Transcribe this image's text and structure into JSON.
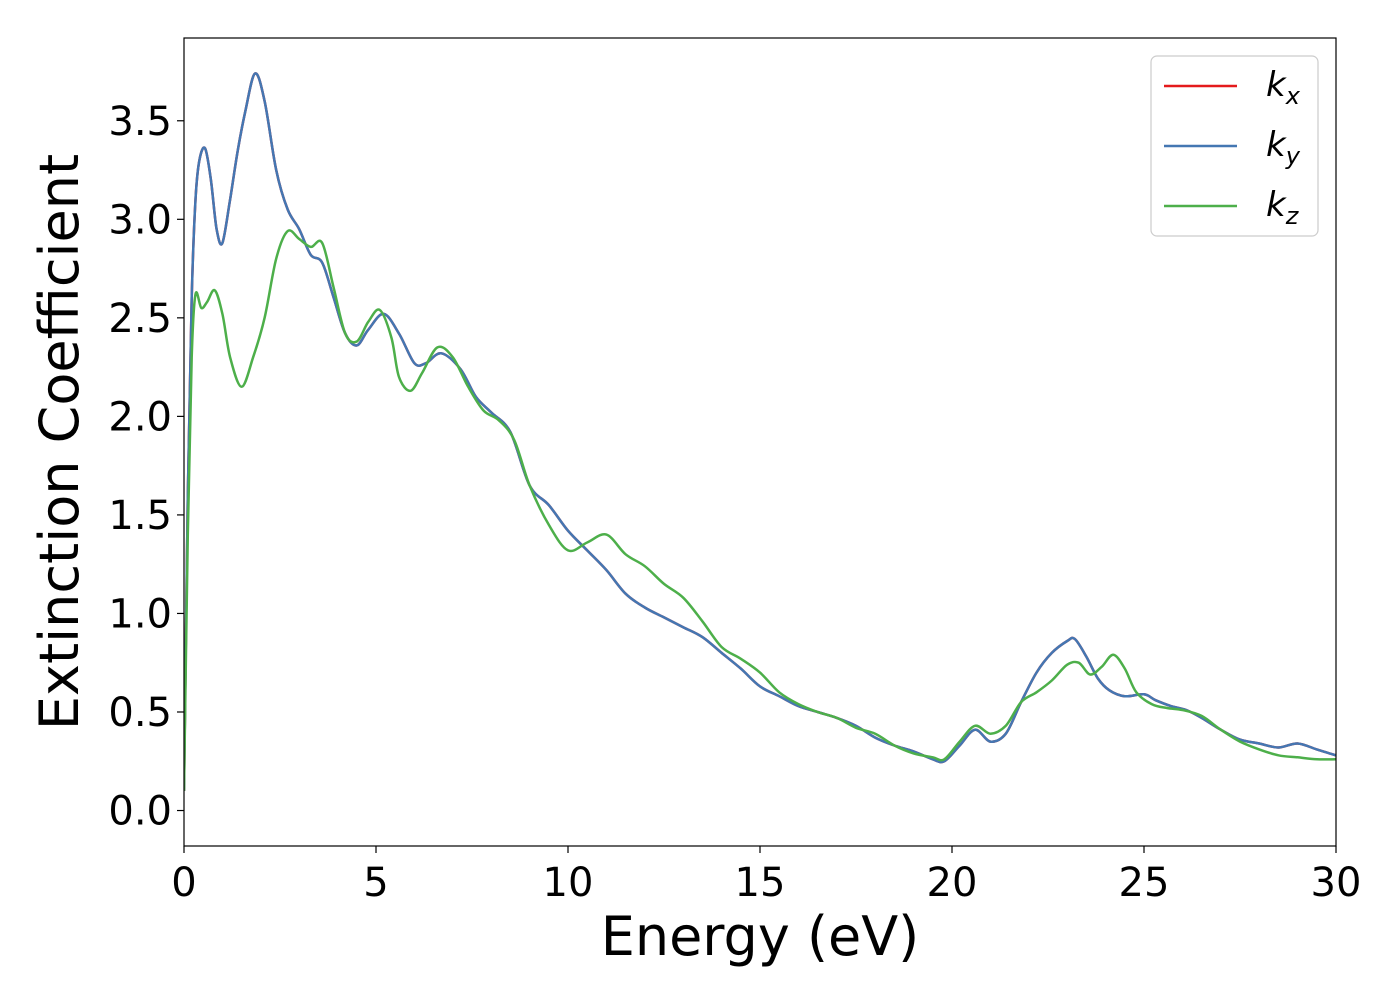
{
  "chart_data": {
    "type": "line",
    "xlabel": "Energy (eV)",
    "ylabel": "Extinction Coefficient",
    "xlim": [
      0,
      30
    ],
    "ylim": [
      -0.18,
      3.92
    ],
    "xticks": [
      0,
      5,
      10,
      15,
      20,
      25,
      30
    ],
    "xtick_labels": [
      "0",
      "5",
      "10",
      "15",
      "20",
      "25",
      "30"
    ],
    "yticks": [
      0.0,
      0.5,
      1.0,
      1.5,
      2.0,
      2.5,
      3.0,
      3.5
    ],
    "ytick_labels": [
      "0.0",
      "0.5",
      "1.0",
      "1.5",
      "2.0",
      "2.5",
      "3.0",
      "3.5"
    ],
    "grid": false,
    "legend_position": "top-right",
    "series": [
      {
        "name": "k_x",
        "legend_base": "k",
        "legend_sub": "x",
        "color": "#e41a1c",
        "x": [
          0,
          0.1,
          0.2,
          0.3,
          0.4,
          0.55,
          0.7,
          0.85,
          1.0,
          1.2,
          1.4,
          1.6,
          1.85,
          2.1,
          2.4,
          2.7,
          3.0,
          3.3,
          3.6,
          3.9,
          4.2,
          4.5,
          4.8,
          5.2,
          5.6,
          6.0,
          6.3,
          6.7,
          7.2,
          7.6,
          8.0,
          8.5,
          9.0,
          9.5,
          10.0,
          10.5,
          11.0,
          11.5,
          12.0,
          12.5,
          13.0,
          13.5,
          14.0,
          14.5,
          15.0,
          15.5,
          16.0,
          16.5,
          17.0,
          17.5,
          18.0,
          18.5,
          19.0,
          19.5,
          19.8,
          20.2,
          20.6,
          21.0,
          21.4,
          21.8,
          22.2,
          22.6,
          23.0,
          23.2,
          23.5,
          23.8,
          24.1,
          24.5,
          25.0,
          25.3,
          25.7,
          26.1,
          26.5,
          27.0,
          27.5,
          28.0,
          28.5,
          29.0,
          29.5,
          30.0
        ],
        "y": [
          0.1,
          1.6,
          2.6,
          3.1,
          3.3,
          3.36,
          3.2,
          2.95,
          2.88,
          3.1,
          3.35,
          3.55,
          3.74,
          3.6,
          3.25,
          3.05,
          2.95,
          2.82,
          2.78,
          2.6,
          2.42,
          2.36,
          2.44,
          2.52,
          2.42,
          2.27,
          2.27,
          2.32,
          2.24,
          2.1,
          2.02,
          1.92,
          1.65,
          1.55,
          1.42,
          1.32,
          1.22,
          1.1,
          1.03,
          0.98,
          0.93,
          0.88,
          0.8,
          0.72,
          0.63,
          0.58,
          0.53,
          0.5,
          0.47,
          0.43,
          0.37,
          0.33,
          0.3,
          0.26,
          0.25,
          0.33,
          0.41,
          0.35,
          0.39,
          0.55,
          0.7,
          0.8,
          0.86,
          0.87,
          0.78,
          0.67,
          0.61,
          0.58,
          0.59,
          0.56,
          0.53,
          0.51,
          0.47,
          0.41,
          0.36,
          0.34,
          0.32,
          0.34,
          0.31,
          0.28
        ]
      },
      {
        "name": "k_y",
        "legend_base": "k",
        "legend_sub": "y",
        "color": "#4477b2",
        "x": [
          0,
          0.1,
          0.2,
          0.3,
          0.4,
          0.55,
          0.7,
          0.85,
          1.0,
          1.2,
          1.4,
          1.6,
          1.85,
          2.1,
          2.4,
          2.7,
          3.0,
          3.3,
          3.6,
          3.9,
          4.2,
          4.5,
          4.8,
          5.2,
          5.6,
          6.0,
          6.3,
          6.7,
          7.2,
          7.6,
          8.0,
          8.5,
          9.0,
          9.5,
          10.0,
          10.5,
          11.0,
          11.5,
          12.0,
          12.5,
          13.0,
          13.5,
          14.0,
          14.5,
          15.0,
          15.5,
          16.0,
          16.5,
          17.0,
          17.5,
          18.0,
          18.5,
          19.0,
          19.5,
          19.8,
          20.2,
          20.6,
          21.0,
          21.4,
          21.8,
          22.2,
          22.6,
          23.0,
          23.2,
          23.5,
          23.8,
          24.1,
          24.5,
          25.0,
          25.3,
          25.7,
          26.1,
          26.5,
          27.0,
          27.5,
          28.0,
          28.5,
          29.0,
          29.5,
          30.0
        ],
        "y": [
          0.1,
          1.6,
          2.6,
          3.1,
          3.3,
          3.36,
          3.2,
          2.95,
          2.88,
          3.1,
          3.35,
          3.55,
          3.74,
          3.6,
          3.25,
          3.05,
          2.95,
          2.82,
          2.78,
          2.6,
          2.42,
          2.36,
          2.44,
          2.52,
          2.42,
          2.27,
          2.27,
          2.32,
          2.24,
          2.1,
          2.02,
          1.92,
          1.65,
          1.55,
          1.42,
          1.32,
          1.22,
          1.1,
          1.03,
          0.98,
          0.93,
          0.88,
          0.8,
          0.72,
          0.63,
          0.58,
          0.53,
          0.5,
          0.47,
          0.43,
          0.37,
          0.33,
          0.3,
          0.26,
          0.25,
          0.33,
          0.41,
          0.35,
          0.39,
          0.55,
          0.7,
          0.8,
          0.86,
          0.87,
          0.78,
          0.67,
          0.61,
          0.58,
          0.59,
          0.56,
          0.53,
          0.51,
          0.47,
          0.41,
          0.36,
          0.34,
          0.32,
          0.34,
          0.31,
          0.28
        ]
      },
      {
        "name": "k_z",
        "legend_base": "k",
        "legend_sub": "z",
        "color": "#4daf4a",
        "x": [
          0,
          0.1,
          0.2,
          0.3,
          0.45,
          0.6,
          0.8,
          1.0,
          1.2,
          1.5,
          1.8,
          2.1,
          2.4,
          2.7,
          3.0,
          3.3,
          3.6,
          3.9,
          4.2,
          4.5,
          4.8,
          5.1,
          5.4,
          5.6,
          5.9,
          6.2,
          6.6,
          7.0,
          7.4,
          7.8,
          8.2,
          8.6,
          9.0,
          9.5,
          10.0,
          10.5,
          11.0,
          11.5,
          12.0,
          12.5,
          13.0,
          13.5,
          14.0,
          14.5,
          15.0,
          15.5,
          16.0,
          16.5,
          17.0,
          17.5,
          18.0,
          18.5,
          19.0,
          19.5,
          19.8,
          20.2,
          20.6,
          21.0,
          21.4,
          21.8,
          22.2,
          22.6,
          23.0,
          23.3,
          23.6,
          23.9,
          24.2,
          24.5,
          24.8,
          25.2,
          25.6,
          26.0,
          26.5,
          27.0,
          27.5,
          28.0,
          28.5,
          29.0,
          29.5,
          30.0
        ],
        "y": [
          0.1,
          1.4,
          2.3,
          2.62,
          2.55,
          2.58,
          2.64,
          2.52,
          2.3,
          2.15,
          2.3,
          2.5,
          2.8,
          2.94,
          2.9,
          2.86,
          2.88,
          2.65,
          2.42,
          2.38,
          2.48,
          2.54,
          2.4,
          2.2,
          2.13,
          2.22,
          2.35,
          2.3,
          2.15,
          2.03,
          1.98,
          1.88,
          1.65,
          1.45,
          1.32,
          1.36,
          1.4,
          1.3,
          1.24,
          1.15,
          1.08,
          0.96,
          0.83,
          0.77,
          0.7,
          0.6,
          0.54,
          0.5,
          0.47,
          0.42,
          0.39,
          0.33,
          0.29,
          0.27,
          0.26,
          0.35,
          0.43,
          0.39,
          0.43,
          0.55,
          0.6,
          0.66,
          0.74,
          0.75,
          0.69,
          0.73,
          0.79,
          0.72,
          0.6,
          0.54,
          0.52,
          0.51,
          0.48,
          0.41,
          0.35,
          0.31,
          0.28,
          0.27,
          0.26,
          0.26
        ]
      }
    ]
  }
}
